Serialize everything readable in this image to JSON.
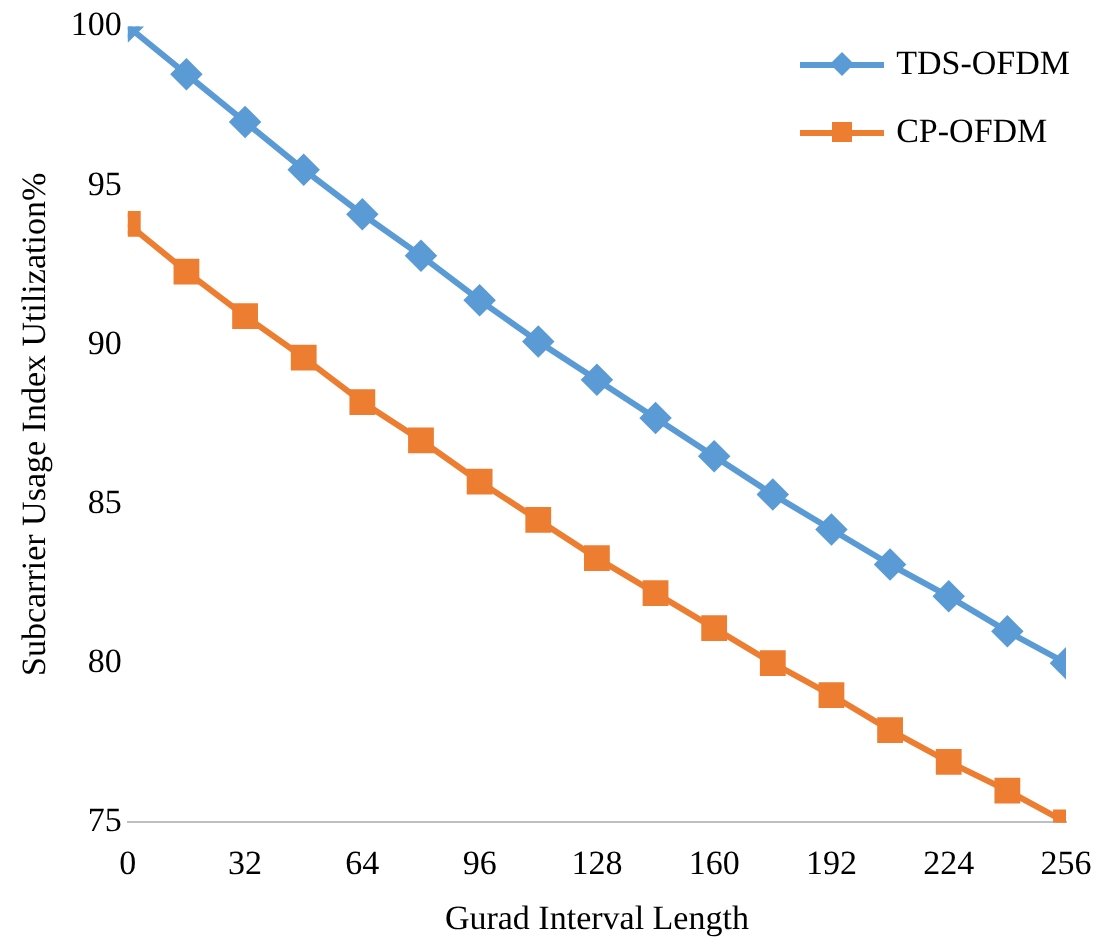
{
  "chart_data": {
    "type": "line",
    "xlabel": "Gurad Interval Length",
    "ylabel": "Subcarrier Usage Index Utilization%",
    "x": [
      0,
      16,
      32,
      48,
      64,
      80,
      96,
      112,
      128,
      144,
      160,
      176,
      192,
      208,
      224,
      240,
      256
    ],
    "xlim": [
      0,
      256
    ],
    "xticks": [
      0,
      32,
      64,
      96,
      128,
      160,
      192,
      224,
      256
    ],
    "ylim": [
      75,
      100
    ],
    "yticks": [
      75,
      80,
      85,
      90,
      95,
      100
    ],
    "grid": false,
    "legend": "top right",
    "line_style": "solid",
    "series": [
      {
        "name": "TDS-OFDM",
        "color": "#5b9bd5",
        "marker": "diamond",
        "values": [
          100,
          98.5,
          97.0,
          95.5,
          94.1,
          92.8,
          91.4,
          90.1,
          88.9,
          87.7,
          86.5,
          85.3,
          84.2,
          83.1,
          82.1,
          81.0,
          80.0
        ]
      },
      {
        "name": "CP-OFDM",
        "color": "#ed7d31",
        "marker": "square",
        "values": [
          93.8,
          92.3,
          90.9,
          89.6,
          88.2,
          87.0,
          85.7,
          84.5,
          83.3,
          82.2,
          81.1,
          80.0,
          79.0,
          77.9,
          76.9,
          76.0,
          75.0
        ]
      }
    ]
  }
}
